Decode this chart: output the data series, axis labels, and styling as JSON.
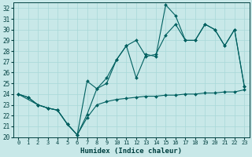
{
  "xlabel": "Humidex (Indice chaleur)",
  "bg_color": "#c8e8e8",
  "line_color": "#006060",
  "xlim": [
    -0.5,
    23.5
  ],
  "ylim": [
    20,
    32.5
  ],
  "yticks": [
    20,
    21,
    22,
    23,
    24,
    25,
    26,
    27,
    28,
    29,
    30,
    31,
    32
  ],
  "xticks": [
    0,
    1,
    2,
    3,
    4,
    5,
    6,
    7,
    8,
    9,
    10,
    11,
    12,
    13,
    14,
    15,
    16,
    17,
    18,
    19,
    20,
    21,
    22,
    23
  ],
  "line1_x": [
    0,
    1,
    2,
    3,
    4,
    5,
    6,
    7,
    8,
    9,
    10,
    11,
    12,
    13,
    14,
    15,
    16,
    17,
    18,
    19,
    20,
    21,
    22,
    23
  ],
  "line1_y": [
    24,
    23.7,
    23,
    22.7,
    22.5,
    21.2,
    20.2,
    21.8,
    23,
    23.3,
    23.5,
    23.6,
    23.7,
    23.8,
    23.8,
    23.9,
    23.9,
    24.0,
    24.0,
    24.1,
    24.1,
    24.2,
    24.2,
    24.4
  ],
  "line2_x": [
    0,
    2,
    3,
    4,
    5,
    6,
    7,
    8,
    9,
    10,
    11,
    12,
    13,
    14,
    15,
    16,
    17,
    18,
    19,
    20,
    21,
    22,
    23
  ],
  "line2_y": [
    24,
    23,
    22.7,
    22.5,
    21.2,
    20.2,
    25.2,
    24.5,
    25.5,
    27.2,
    28.5,
    25.5,
    27.7,
    27.5,
    32.3,
    31.3,
    29.0,
    29.0,
    30.5,
    30.0,
    28.5,
    30.0,
    24.7
  ],
  "line3_x": [
    0,
    1,
    2,
    3,
    4,
    5,
    6,
    7,
    8,
    9,
    10,
    11,
    12,
    13,
    14,
    15,
    16,
    17,
    18,
    19,
    20,
    21,
    22,
    23
  ],
  "line3_y": [
    24,
    23.7,
    23,
    22.7,
    22.5,
    21.2,
    20.2,
    22.1,
    24.5,
    25.0,
    27.2,
    28.5,
    29.0,
    27.5,
    27.7,
    29.5,
    30.5,
    29.0,
    29.0,
    30.5,
    30.0,
    28.5,
    30.0,
    24.7
  ],
  "grid_color": "#a8d8d8",
  "font_name": "monospace"
}
